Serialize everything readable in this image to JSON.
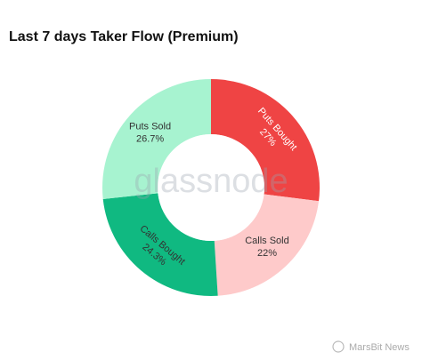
{
  "chart_data": {
    "type": "pie",
    "title": "Last 7 days Taker Flow (Premium)",
    "categories": [
      "Puts Bought",
      "Calls Sold",
      "Calls Bought",
      "Puts Sold"
    ],
    "values": [
      27,
      22,
      24.3,
      26.7
    ],
    "value_labels": [
      "27%",
      "22%",
      "24.3%",
      "26.7%"
    ],
    "colors": [
      "#ef4444",
      "#fecaca",
      "#10b981",
      "#a7f3d0"
    ],
    "watermark": "glassnode"
  },
  "footer": "MarsBit News"
}
